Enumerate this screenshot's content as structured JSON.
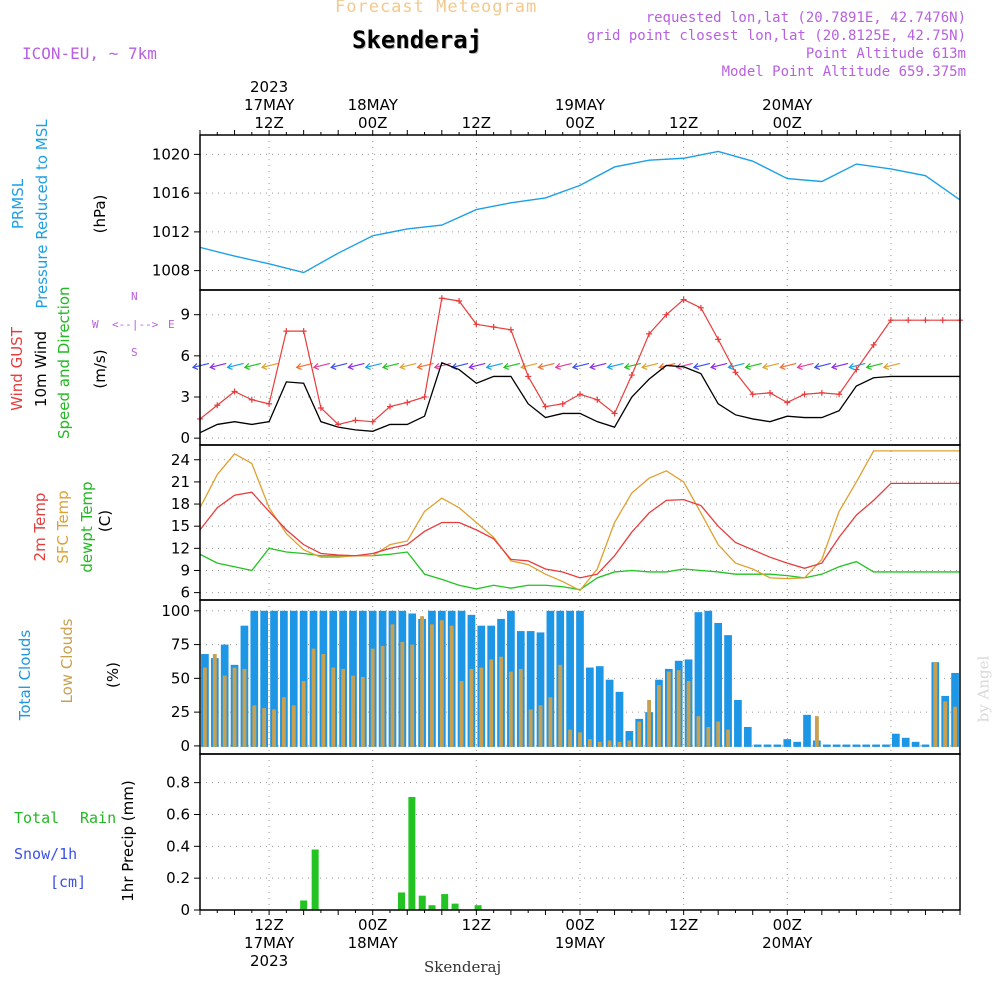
{
  "header": {
    "title_top": "Forecast Meteogram",
    "location": "Skenderaj",
    "model": "ICON-EU, ~ 7km",
    "requested": "requested lon,lat (20.7891E, 42.7476N)",
    "gridpoint": "grid point closest lon,lat (20.8125E, 42.75N)",
    "point_alt": "Point Altitude 613m",
    "model_alt": "Model Point Altitude 659.375m",
    "footer": "Skenderaj",
    "watermark": "by Angel"
  },
  "colors": {
    "pressure": "#1ba0e6",
    "gust": "#e83c3c",
    "wind": "#000000",
    "temp2m": "#e83c3c",
    "sfc": "#e0a030",
    "dew": "#22c322",
    "total_clouds": "#1e96e6",
    "low_clouds": "#c8a050",
    "rain": "#22c322",
    "snow": "#3c50e6"
  },
  "panel_labels": {
    "pressure": [
      "PRMSL",
      "Pressure Reduced to MSL",
      "(hPa)"
    ],
    "wind": [
      "Wind GUST",
      "10m Wind",
      "Speed and Direction",
      "(m/s)"
    ],
    "compass": [
      "W",
      "E",
      "N",
      "S"
    ],
    "temp": [
      "2m Temp",
      "SFC Temp",
      "dewpt Temp",
      "(C)"
    ],
    "clouds": [
      "Total Clouds",
      "Low Clouds",
      "(%)"
    ],
    "precip": [
      "Total",
      "Rain",
      "Snow/1h",
      "[cm]",
      "1hr Precip (mm)"
    ]
  },
  "chart_data": [
    {
      "type": "line",
      "panel": "pressure",
      "ylim": [
        1006,
        1022
      ],
      "yticks": [
        1008,
        1012,
        1016,
        1020
      ],
      "hours": [
        0,
        6,
        12,
        18,
        24,
        30,
        36,
        42,
        48,
        54,
        60,
        66,
        72,
        78,
        84,
        90,
        96,
        102,
        108,
        114,
        120,
        126,
        132
      ],
      "series": [
        {
          "values": [
            1010.4,
            1009.5,
            1008.7,
            1007.8,
            1009.8,
            1011.6,
            1012.3,
            1012.7,
            1014.3,
            1015.0,
            1015.5,
            1016.8,
            1018.7,
            1019.4,
            1019.6,
            1020.3,
            1019.3,
            1017.5,
            1017.2,
            1019.0,
            1018.5,
            1017.8,
            1015.3
          ]
        }
      ]
    },
    {
      "type": "line",
      "panel": "wind",
      "ylim": [
        -0.5,
        10.8
      ],
      "yticks": [
        0,
        3,
        6,
        9
      ],
      "hours": [
        0,
        3,
        6,
        9,
        12,
        15,
        18,
        21,
        24,
        27,
        30,
        33,
        36,
        39,
        42,
        45,
        48,
        51,
        54,
        57,
        60,
        63,
        66,
        69,
        72,
        75,
        78,
        81,
        84,
        87,
        90,
        93,
        96,
        99,
        102,
        105,
        108,
        111,
        114,
        117,
        120,
        123,
        126,
        129,
        132
      ],
      "series": [
        {
          "name": "Wind GUST",
          "values": [
            1.4,
            2.4,
            3.4,
            2.8,
            2.5,
            7.8,
            7.8,
            2.2,
            1.0,
            1.3,
            1.2,
            2.3,
            2.6,
            3.0,
            10.2,
            10.0,
            8.3,
            8.1,
            7.9,
            4.5,
            2.3,
            2.5,
            3.2,
            2.8,
            1.8,
            4.6,
            7.6,
            9.0,
            10.1,
            9.5,
            7.2,
            4.8,
            3.2,
            3.3,
            2.6,
            3.2,
            3.3,
            3.2,
            5.0,
            6.8,
            8.6,
            8.6,
            8.6,
            8.6,
            8.6
          ]
        },
        {
          "name": "10m Wind",
          "values": [
            0.4,
            1.0,
            1.2,
            1.0,
            1.2,
            4.1,
            4.0,
            1.2,
            0.8,
            0.6,
            0.5,
            1.0,
            1.0,
            1.6,
            5.5,
            5.0,
            4.0,
            4.5,
            4.5,
            2.5,
            1.5,
            1.8,
            1.8,
            1.2,
            0.8,
            3.0,
            4.3,
            5.3,
            5.2,
            4.7,
            2.5,
            1.7,
            1.4,
            1.2,
            1.6,
            1.5,
            1.5,
            2.0,
            3.8,
            4.4,
            4.5,
            4.5,
            4.5,
            4.5,
            4.5
          ]
        }
      ],
      "arrow_height": 5.3,
      "arrow_hours": [
        0,
        3,
        6,
        9,
        12,
        18,
        21,
        24,
        27,
        30,
        33,
        36,
        39,
        42,
        45,
        48,
        51,
        54,
        57,
        60,
        63,
        66,
        69,
        72,
        75,
        78,
        81,
        84,
        87,
        90,
        93,
        96,
        99,
        102,
        105,
        108,
        111,
        114,
        117,
        120
      ]
    },
    {
      "type": "line",
      "panel": "temp",
      "ylim": [
        5,
        26
      ],
      "yticks": [
        6,
        9,
        12,
        15,
        18,
        21,
        24
      ],
      "hours": [
        0,
        3,
        6,
        9,
        12,
        15,
        18,
        21,
        24,
        27,
        30,
        33,
        36,
        39,
        42,
        45,
        48,
        51,
        54,
        57,
        60,
        63,
        66,
        69,
        72,
        75,
        78,
        81,
        84,
        87,
        90,
        93,
        96,
        99,
        102,
        105,
        108,
        111,
        114,
        117,
        120,
        123,
        126,
        129,
        132
      ],
      "series": [
        {
          "name": "2m Temp",
          "values": [
            14.5,
            17.5,
            19.2,
            19.6,
            17.0,
            14.5,
            12.5,
            11.3,
            11.1,
            11.0,
            11.3,
            12.0,
            12.5,
            14.3,
            15.5,
            15.5,
            14.5,
            13.3,
            10.5,
            10.3,
            9.2,
            8.8,
            8.0,
            8.5,
            11.0,
            14.2,
            16.8,
            18.5,
            18.6,
            17.8,
            15.0,
            12.8,
            11.8,
            10.8,
            10.0,
            9.3,
            10.0,
            13.5,
            16.5,
            18.5,
            20.8,
            20.8,
            20.8,
            20.8,
            20.8
          ]
        },
        {
          "name": "SFC Temp",
          "values": [
            17.5,
            22.0,
            24.8,
            23.5,
            17.5,
            14.0,
            11.8,
            10.8,
            10.8,
            11.0,
            11.0,
            12.5,
            13.0,
            17.0,
            18.8,
            17.5,
            15.5,
            13.5,
            10.3,
            9.8,
            8.5,
            7.5,
            6.3,
            9.2,
            15.5,
            19.5,
            21.5,
            22.5,
            21.0,
            16.8,
            12.5,
            10.0,
            9.2,
            8.0,
            7.9,
            8.0,
            10.5,
            17.0,
            21.0,
            25.2,
            25.2,
            25.2,
            25.2,
            25.2,
            25.2
          ]
        },
        {
          "name": "dewpt Temp",
          "values": [
            11.2,
            10.0,
            9.5,
            9.0,
            12.0,
            11.5,
            11.3,
            11.0,
            11.0,
            11.0,
            11.0,
            11.2,
            11.5,
            8.5,
            7.8,
            7.0,
            6.5,
            7.0,
            6.6,
            7.0,
            7.0,
            6.8,
            6.4,
            8.0,
            8.8,
            9.0,
            8.8,
            8.8,
            9.2,
            9.0,
            8.8,
            8.5,
            8.5,
            8.5,
            8.3,
            8.0,
            8.5,
            9.5,
            10.2,
            8.8,
            8.8,
            8.8,
            8.8,
            8.8,
            8.8
          ]
        }
      ]
    },
    {
      "type": "bar",
      "panel": "clouds",
      "ylim": [
        -6,
        108
      ],
      "yticks": [
        0,
        25,
        50,
        75,
        100
      ],
      "series": [
        {
          "name": "Total Clouds",
          "values": [
            68,
            65,
            75,
            60,
            89,
            100,
            100,
            100,
            100,
            100,
            100,
            100,
            100,
            100,
            100,
            100,
            100,
            100,
            100,
            100,
            100,
            98,
            94,
            100,
            100,
            100,
            100,
            97,
            89,
            89,
            94,
            100,
            85,
            85,
            84,
            100,
            100,
            100,
            100,
            58,
            59,
            49,
            40,
            11,
            20,
            25,
            49,
            57,
            63,
            64,
            99,
            100,
            91,
            82,
            34,
            14,
            1,
            1,
            1,
            5,
            3,
            23,
            4,
            1,
            1,
            1,
            1,
            1,
            1,
            1,
            9,
            6,
            3,
            1,
            62,
            37,
            54
          ]
        },
        {
          "name": "Low Clouds",
          "values": [
            58,
            68,
            52,
            58,
            57,
            30,
            28,
            27,
            36,
            30,
            48,
            72,
            68,
            58,
            57,
            52,
            51,
            72,
            74,
            90,
            77,
            75,
            96,
            90,
            93,
            89,
            48,
            57,
            58,
            64,
            66,
            55,
            57,
            27,
            30,
            36,
            60,
            12,
            10,
            5,
            3,
            4,
            3,
            4,
            18,
            34,
            45,
            55,
            56,
            48,
            22,
            14,
            18,
            12,
            0,
            0,
            0,
            0,
            0,
            0,
            0,
            0,
            22,
            0,
            0,
            0,
            0,
            0,
            0,
            0,
            0,
            0,
            0,
            0,
            62,
            33,
            29
          ]
        }
      ]
    },
    {
      "type": "bar",
      "panel": "precip",
      "ylim": [
        0,
        0.98
      ],
      "yticks": [
        0,
        0.2,
        0.4,
        0.6,
        0.8
      ],
      "bars": [
        {
          "hour": 18,
          "value": 0.06
        },
        {
          "hour": 20,
          "value": 0.38
        },
        {
          "hour": 35,
          "value": 0.11
        },
        {
          "hour": 36.8,
          "value": 0.71
        },
        {
          "hour": 38.6,
          "value": 0.09
        },
        {
          "hour": 40.3,
          "value": 0.03
        },
        {
          "hour": 42.5,
          "value": 0.1
        },
        {
          "hour": 44.3,
          "value": 0.04
        },
        {
          "hour": 48.3,
          "value": 0.03
        }
      ]
    }
  ],
  "x_axis": {
    "year": "2023",
    "top_labels": [
      {
        "hour": 12,
        "time": "12Z",
        "date": "17MAY",
        "year": "2023"
      },
      {
        "hour": 30,
        "time": "00Z",
        "date": "18MAY"
      },
      {
        "hour": 48,
        "time": "12Z"
      },
      {
        "hour": 66,
        "time": "00Z",
        "date": "19MAY"
      },
      {
        "hour": 84,
        "time": "12Z"
      },
      {
        "hour": 102,
        "time": "00Z",
        "date": "20MAY"
      }
    ]
  }
}
